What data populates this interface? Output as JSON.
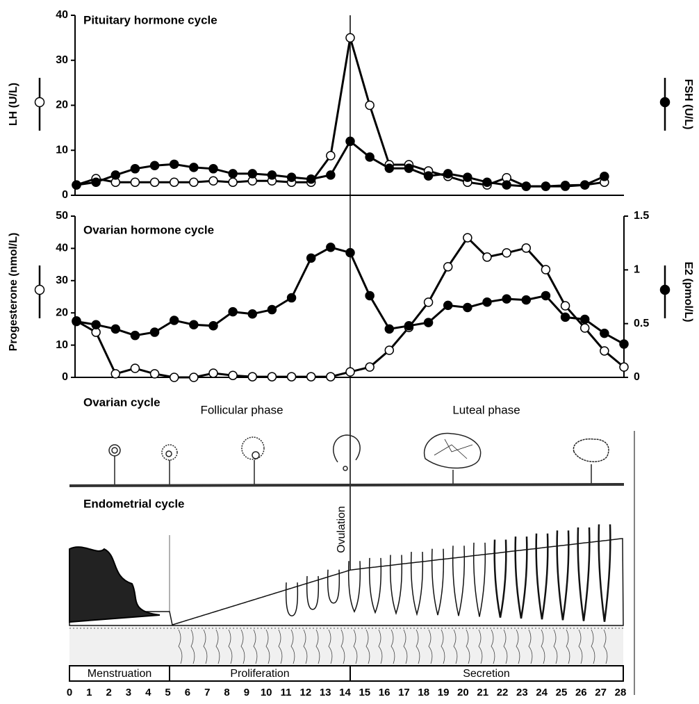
{
  "chart_data": [
    {
      "type": "line",
      "title": "Pituitary hormone cycle",
      "x": [
        0,
        1,
        2,
        3,
        4,
        5,
        6,
        7,
        8,
        9,
        10,
        11,
        12,
        13,
        14,
        15,
        16,
        17,
        18,
        19,
        20,
        21,
        22,
        23,
        24,
        25,
        26,
        27
      ],
      "xlim": [
        0,
        28
      ],
      "ylim": [
        0,
        40
      ],
      "yticks": [
        0,
        10,
        20,
        30,
        40
      ],
      "series": [
        {
          "name": "LH (U/L)",
          "color": "#000000",
          "marker": "open",
          "values": [
            2.3,
            3.7,
            2.9,
            2.9,
            2.9,
            2.9,
            2.9,
            3.2,
            2.9,
            3.2,
            3.2,
            2.9,
            2.9,
            8.8,
            35,
            20,
            6.8,
            6.8,
            5.4,
            4.2,
            2.9,
            2.3,
            3.9,
            2.0,
            2.0,
            2.0,
            2.3,
            2.9
          ]
        },
        {
          "name": "FSH (U/L)",
          "color": "#000000",
          "marker": "filled",
          "values": [
            2.3,
            2.9,
            4.5,
            5.9,
            6.6,
            6.9,
            6.2,
            5.9,
            4.8,
            4.8,
            4.5,
            4.0,
            3.6,
            4.5,
            12,
            8.5,
            6.0,
            6.0,
            4.3,
            4.8,
            4.0,
            2.9,
            2.3,
            2.0,
            2.0,
            2.2,
            2.3,
            4.2
          ]
        }
      ]
    },
    {
      "type": "line",
      "title": "Ovarian hormone cycle",
      "x": [
        0,
        1,
        2,
        3,
        4,
        5,
        6,
        7,
        8,
        9,
        10,
        11,
        12,
        13,
        14,
        15,
        16,
        17,
        18,
        19,
        20,
        21,
        22,
        23,
        24,
        25,
        26,
        27,
        28
      ],
      "xlim": [
        0,
        28
      ],
      "ylim": [
        0,
        50
      ],
      "yticks": [
        0,
        10,
        20,
        30,
        40,
        50
      ],
      "y2lim": [
        0,
        1.5
      ],
      "y2ticks": [
        0,
        0.5,
        1,
        1.5
      ],
      "series": [
        {
          "name": "Progesterone (nmol/L)",
          "color": "#000000",
          "marker": "open",
          "values": [
            17.5,
            14,
            1.1,
            2.8,
            1.1,
            0,
            0,
            1.3,
            0.6,
            0.2,
            0.2,
            0.2,
            0.2,
            0.2,
            1.7,
            3.2,
            8.4,
            15.5,
            23.3,
            34.3,
            43.3,
            37.3,
            38.6,
            40.1,
            33.4,
            22.2,
            15.3,
            8.2,
            3.2
          ]
        },
        {
          "name": "E2 (pmol/L)",
          "color": "#000000",
          "marker": "filled",
          "axis": "y2",
          "values": [
            0.52,
            0.49,
            0.45,
            0.39,
            0.42,
            0.53,
            0.49,
            0.48,
            0.61,
            0.59,
            0.63,
            0.74,
            1.11,
            1.21,
            1.16,
            0.76,
            0.45,
            0.48,
            0.51,
            0.67,
            0.65,
            0.7,
            0.73,
            0.72,
            0.76,
            0.56,
            0.54,
            0.41,
            0.31
          ]
        }
      ]
    }
  ],
  "diagram": {
    "ovarian_title": "Ovarian cycle",
    "follicular": "Follicular phase",
    "luteal": "Luteal phase",
    "endometrial_title": "Endometrial cycle",
    "ovulation": "Ovulation",
    "phases": [
      "Menstruation",
      "Proliferation",
      "Secretion"
    ],
    "days": [
      0,
      1,
      2,
      3,
      4,
      5,
      6,
      7,
      8,
      9,
      10,
      11,
      12,
      13,
      14,
      15,
      16,
      17,
      18,
      19,
      20,
      21,
      22,
      23,
      24,
      25,
      26,
      27,
      28
    ]
  }
}
